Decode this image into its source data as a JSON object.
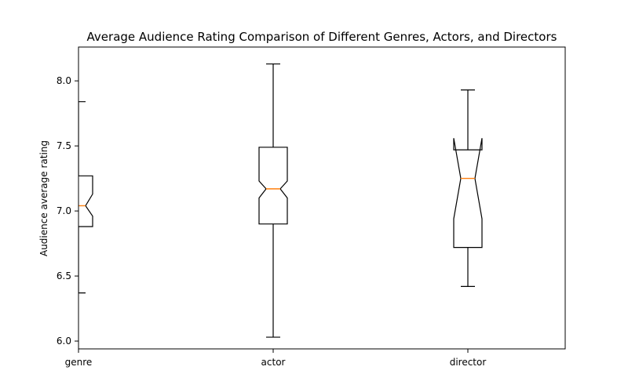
{
  "chart_data": {
    "type": "boxplot",
    "title": "Average Audience Rating Comparison of Different Genres, Actors, and Directors",
    "xlabel": "",
    "ylabel": "Audience average rating",
    "ylim": [
      5.94,
      8.26
    ],
    "yticks": [
      6.0,
      6.5,
      7.0,
      7.5,
      8.0
    ],
    "ytick_labels": [
      "6.0",
      "6.5",
      "7.0",
      "7.5",
      "8.0"
    ],
    "categories": [
      "genre",
      "actor",
      "director"
    ],
    "notched": true,
    "boxes": [
      {
        "category": "genre",
        "whisker_low": 6.37,
        "q1": 6.88,
        "median": 7.04,
        "q3": 7.27,
        "whisker_high": 7.84,
        "notch_low": 6.96,
        "notch_high": 7.13
      },
      {
        "category": "actor",
        "whisker_low": 6.03,
        "q1": 6.9,
        "median": 7.17,
        "q3": 7.49,
        "whisker_high": 8.13,
        "notch_low": 7.1,
        "notch_high": 7.23
      },
      {
        "category": "director",
        "whisker_low": 6.42,
        "q1": 6.72,
        "median": 7.25,
        "q3": 7.47,
        "whisker_high": 7.93,
        "notch_low": 6.94,
        "notch_high": 7.56
      }
    ],
    "colors": {
      "box": "#000000",
      "median": "#ff7f0e",
      "background": "#ffffff"
    },
    "grid": false
  }
}
